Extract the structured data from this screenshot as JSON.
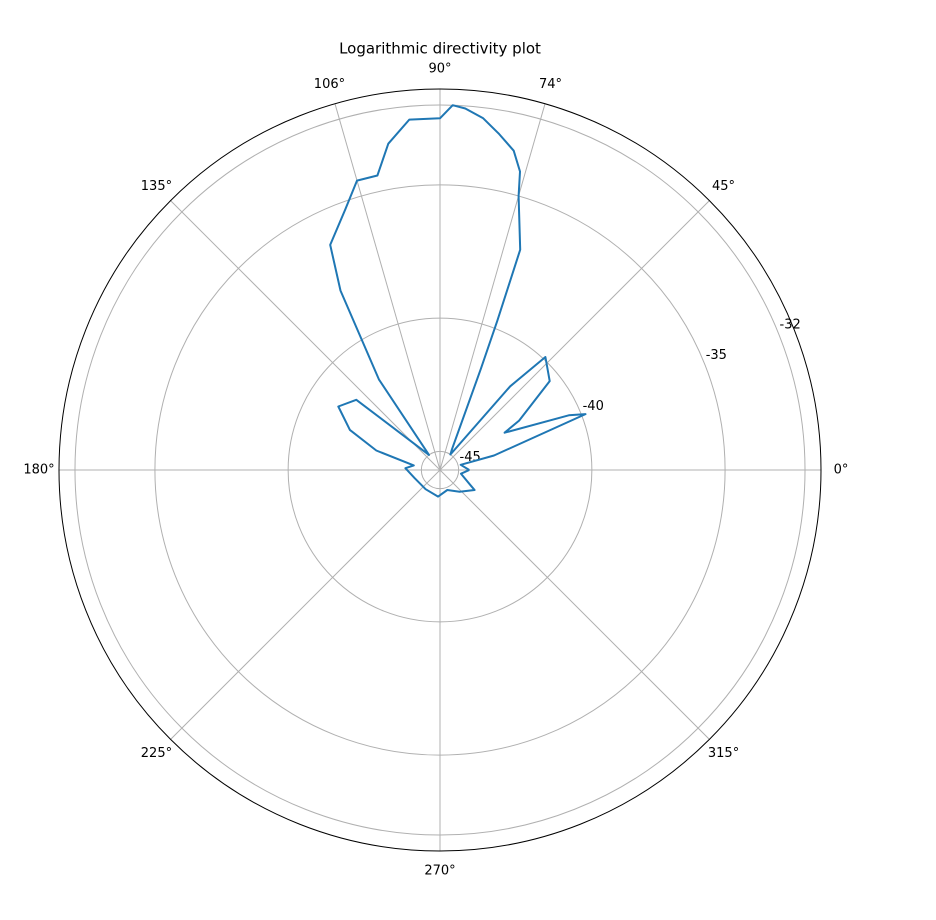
{
  "chart_data": {
    "type": "polar",
    "title": "Logarithmic directivity plot",
    "color": "#1f77b4",
    "grid": true,
    "rlim": [
      -45.7,
      -31.4
    ],
    "rticks": [
      -45,
      -40,
      -35,
      -32
    ],
    "thetaticks": [
      {
        "value": 0,
        "label": "0°"
      },
      {
        "value": 45,
        "label": "45°"
      },
      {
        "value": 74,
        "label": "74°"
      },
      {
        "value": 90,
        "label": "90°"
      },
      {
        "value": 106,
        "label": "106°"
      },
      {
        "value": 135,
        "label": "135°"
      },
      {
        "value": 180,
        "label": "180°"
      },
      {
        "value": 225,
        "label": "225°"
      },
      {
        "value": 270,
        "label": "270°"
      },
      {
        "value": 315,
        "label": "315°"
      }
    ],
    "theta": [
      0,
      14,
      15,
      21,
      23,
      30,
      32,
      39,
      47,
      50,
      56,
      60,
      68,
      69,
      70,
      74,
      75,
      77,
      80,
      83,
      86,
      88,
      90,
      95,
      99,
      102,
      106,
      110,
      116,
      119,
      124,
      126,
      140,
      148,
      156,
      163,
      170,
      177,
      198,
      233,
      266,
      290,
      312,
      330,
      333,
      350,
      360
    ],
    "values": [
      -44.6,
      -44.9,
      -43.6,
      -39.85,
      -40.45,
      -42.9,
      -42.2,
      -40.4,
      -39.9,
      -41.6,
      -45.0,
      -44.8,
      -41.6,
      -39.7,
      -36.9,
      -35.0,
      -34.1,
      -33.4,
      -32.9,
      -32.4,
      -32.1,
      -32.0,
      -32.5,
      -32.5,
      -33.3,
      -34.4,
      -34.4,
      -35.3,
      -36.3,
      -38.0,
      -41.6,
      -45.0,
      -41.6,
      -41.2,
      -42.0,
      -43.2,
      -44.7,
      -44.4,
      -44.7,
      -44.8,
      -44.7,
      -44.9,
      -44.6,
      -44.2,
      -44.4,
      -44.9,
      -44.6
    ]
  }
}
